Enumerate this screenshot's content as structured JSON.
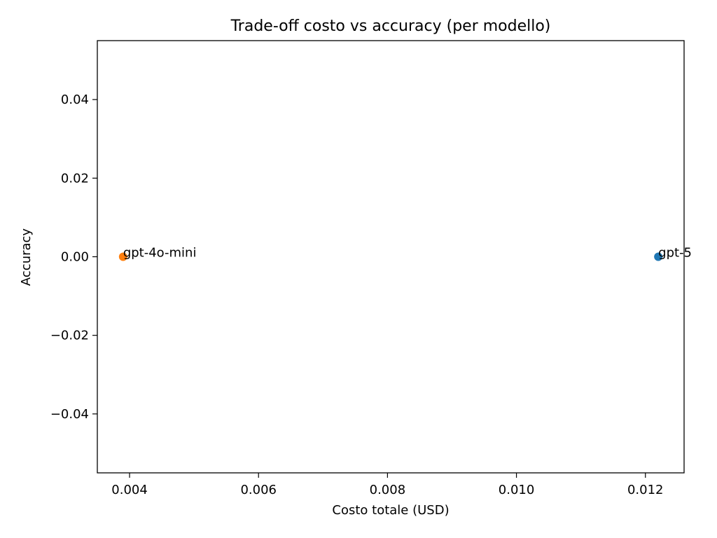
{
  "chart_data": {
    "type": "scatter",
    "title": "Trade-off costo vs accuracy (per modello)",
    "xlabel": "Costo totale (USD)",
    "ylabel": "Accuracy",
    "xlim": [
      0.0035,
      0.0126
    ],
    "ylim": [
      -0.055,
      0.055
    ],
    "xticks": [
      {
        "value": 0.004,
        "label": "0.004"
      },
      {
        "value": 0.006,
        "label": "0.006"
      },
      {
        "value": 0.008,
        "label": "0.008"
      },
      {
        "value": 0.01,
        "label": "0.010"
      },
      {
        "value": 0.012,
        "label": "0.012"
      }
    ],
    "yticks": [
      {
        "value": 0.04,
        "label": "0.04"
      },
      {
        "value": 0.02,
        "label": "0.02"
      },
      {
        "value": 0.0,
        "label": "0.00"
      },
      {
        "value": -0.02,
        "label": "−0.02"
      },
      {
        "value": -0.04,
        "label": "−0.04"
      }
    ],
    "grid": false,
    "legend": "none",
    "points": [
      {
        "label": "gpt-5",
        "x": 0.0122,
        "y": 0.0,
        "color": "#1f77b4"
      },
      {
        "label": "gpt-4o-mini",
        "x": 0.0039,
        "y": 0.0,
        "color": "#ff7f0e"
      }
    ]
  }
}
